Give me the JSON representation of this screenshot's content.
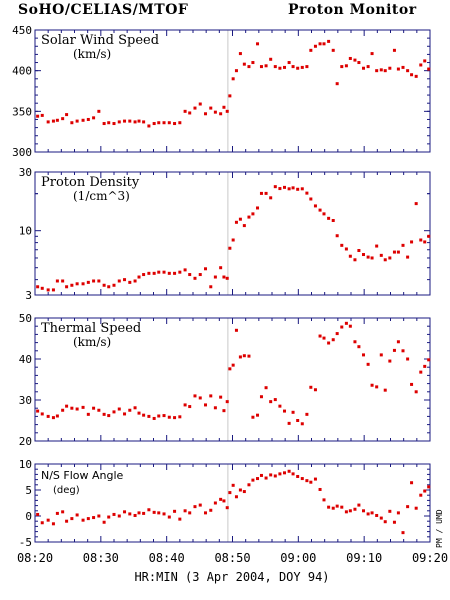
{
  "header": {
    "left_title": "SoHO/CELIAS/MTOF",
    "right_title": "Proton Monitor"
  },
  "footer": {
    "xlabel": "HR:MIN (3 Apr 2004, DOY 94)",
    "side_label": "PM / UMD"
  },
  "colors": {
    "points": "#dd0000",
    "axes": "#1a1a80",
    "text": "#000000",
    "marker_line": "#c8c8c8"
  },
  "chart_data": [
    {
      "type": "scatter",
      "title": "Solar Wind Speed",
      "unit": "(km/s)",
      "yscale": "linear",
      "ylim": [
        300,
        450
      ],
      "yticks": [
        300,
        350,
        400,
        450
      ],
      "x": [
        20.4,
        21.1,
        22.0,
        22.8,
        23.4,
        24.2,
        24.8,
        25.6,
        26.4,
        27.3,
        28.1,
        28.9,
        29.7,
        30.5,
        31.2,
        32.0,
        32.8,
        33.6,
        34.4,
        35.2,
        35.8,
        36.5,
        37.3,
        38.1,
        38.8,
        39.6,
        40.4,
        41.2,
        42.0,
        42.8,
        43.5,
        44.3,
        45.1,
        45.9,
        46.7,
        47.4,
        48.2,
        48.7,
        49.2,
        49.6,
        50.1,
        50.6,
        51.2,
        51.8,
        52.5,
        53.1,
        53.8,
        54.4,
        55.1,
        55.8,
        56.5,
        57.2,
        57.9,
        58.6,
        59.2,
        59.9,
        60.6,
        61.3,
        61.9,
        62.6,
        63.3,
        63.9,
        64.6,
        65.3,
        65.9,
        66.6,
        67.3,
        67.9,
        68.6,
        69.2,
        69.9,
        70.6,
        71.2,
        71.9,
        72.6,
        73.2,
        73.9,
        74.6,
        75.2,
        75.9,
        76.6,
        77.2,
        77.9,
        78.6,
        79.2,
        79.8
      ],
      "y": [
        344,
        345,
        337,
        338,
        339,
        341,
        346,
        336,
        338,
        339,
        340,
        342,
        350,
        335,
        336,
        335,
        337,
        338,
        338,
        337,
        338,
        337,
        332,
        335,
        336,
        336,
        336,
        335,
        336,
        350,
        348,
        354,
        359,
        347,
        354,
        349,
        347,
        355,
        350,
        369,
        390,
        400,
        421,
        408,
        405,
        410,
        433,
        405,
        406,
        414,
        405,
        403,
        404,
        410,
        405,
        403,
        404,
        405,
        425,
        430,
        433,
        433,
        436,
        425,
        384,
        405,
        406,
        415,
        413,
        410,
        403,
        405,
        421,
        400,
        401,
        400,
        403,
        425,
        402,
        404,
        400,
        395,
        393,
        407,
        412,
        402
      ]
    },
    {
      "type": "scatter",
      "title": "Proton Density",
      "unit": "(1/cm^3)",
      "yscale": "log",
      "ylim": [
        3,
        30
      ],
      "yticks": [
        3,
        10,
        30
      ],
      "x": [
        20.4,
        21.1,
        22.0,
        22.8,
        23.4,
        24.2,
        24.8,
        25.6,
        26.4,
        27.3,
        28.1,
        28.9,
        29.7,
        30.5,
        31.2,
        32.0,
        32.8,
        33.6,
        34.4,
        35.2,
        35.8,
        36.5,
        37.3,
        38.1,
        38.8,
        39.6,
        40.4,
        41.2,
        42.0,
        42.8,
        43.5,
        44.3,
        45.1,
        45.9,
        46.7,
        47.4,
        48.2,
        48.7,
        49.2,
        49.6,
        50.1,
        50.6,
        51.2,
        51.8,
        52.5,
        53.1,
        53.8,
        54.4,
        55.1,
        55.8,
        56.5,
        57.2,
        57.9,
        58.6,
        59.2,
        59.9,
        60.6,
        61.3,
        61.9,
        62.6,
        63.3,
        63.9,
        64.6,
        65.3,
        65.9,
        66.6,
        67.3,
        67.9,
        68.6,
        69.2,
        69.9,
        70.6,
        71.2,
        71.9,
        72.6,
        73.2,
        73.9,
        74.6,
        75.2,
        75.9,
        76.6,
        77.2,
        77.9,
        78.6,
        79.2,
        79.8
      ],
      "y": [
        3.5,
        3.4,
        3.3,
        3.3,
        3.9,
        3.9,
        3.5,
        3.6,
        3.7,
        3.7,
        3.8,
        3.9,
        3.9,
        3.6,
        3.5,
        3.6,
        3.9,
        4.0,
        3.8,
        3.9,
        4.2,
        4.4,
        4.5,
        4.5,
        4.6,
        4.6,
        4.5,
        4.5,
        4.6,
        4.8,
        4.4,
        4.1,
        4.4,
        4.9,
        3.5,
        4.2,
        5.0,
        4.2,
        4.1,
        7.2,
        8.4,
        11.7,
        12.4,
        11.0,
        12.9,
        13.7,
        15.3,
        20.1,
        20.1,
        18.5,
        22.8,
        22.0,
        22.5,
        21.9,
        22.3,
        21.7,
        21.9,
        20.2,
        18.1,
        15.9,
        14.7,
        13.7,
        12.6,
        12.1,
        9.1,
        7.6,
        7.1,
        6.2,
        5.8,
        6.9,
        6.4,
        6.1,
        6.0,
        7.5,
        6.3,
        5.8,
        6.0,
        6.7,
        6.7,
        7.6,
        6.1,
        8.1,
        16.6,
        8.4,
        8.1,
        9.0
      ]
    },
    {
      "type": "scatter",
      "title": "Thermal Speed",
      "unit": "(km/s)",
      "yscale": "linear",
      "ylim": [
        20,
        50
      ],
      "yticks": [
        20,
        30,
        40,
        50
      ],
      "x": [
        20.4,
        21.1,
        22.0,
        22.8,
        23.4,
        24.2,
        24.8,
        25.6,
        26.4,
        27.3,
        28.1,
        28.9,
        29.7,
        30.5,
        31.2,
        32.0,
        32.8,
        33.6,
        34.4,
        35.2,
        35.8,
        36.5,
        37.3,
        38.1,
        38.8,
        39.6,
        40.4,
        41.2,
        42.0,
        42.8,
        43.5,
        44.3,
        45.1,
        45.9,
        46.7,
        47.4,
        48.2,
        48.7,
        49.2,
        49.6,
        50.1,
        50.6,
        51.2,
        51.8,
        52.5,
        53.1,
        53.8,
        54.4,
        55.1,
        55.8,
        56.5,
        57.2,
        57.9,
        58.6,
        59.2,
        59.9,
        60.6,
        61.3,
        61.9,
        62.6,
        63.3,
        63.9,
        64.6,
        65.3,
        65.9,
        66.6,
        67.3,
        67.9,
        68.6,
        69.2,
        69.9,
        70.6,
        71.2,
        71.9,
        72.6,
        73.2,
        73.9,
        74.6,
        75.2,
        75.9,
        76.6,
        77.2,
        77.9,
        78.6,
        79.2,
        79.8
      ],
      "y": [
        27.3,
        26.6,
        26.0,
        25.7,
        26.1,
        27.5,
        28.5,
        28.0,
        27.8,
        28.2,
        26.5,
        28.0,
        27.5,
        26.5,
        26.2,
        27.1,
        27.8,
        26.6,
        27.5,
        28.1,
        26.8,
        26.3,
        26.0,
        25.5,
        26.1,
        26.2,
        25.8,
        25.7,
        25.9,
        28.8,
        28.4,
        31.0,
        30.5,
        28.8,
        31.0,
        28.1,
        30.7,
        27.4,
        29.6,
        37.6,
        38.5,
        47.0,
        40.5,
        40.8,
        40.7,
        25.8,
        26.3,
        30.8,
        33.0,
        29.6,
        30.1,
        28.5,
        27.3,
        24.3,
        27.0,
        25.0,
        24.2,
        26.5,
        33.1,
        32.5,
        45.6,
        45.1,
        43.9,
        44.7,
        46.2,
        47.8,
        48.7,
        48.0,
        44.2,
        43.0,
        41.0,
        38.7,
        33.6,
        33.2,
        41.0,
        32.4,
        39.5,
        42.1,
        44.2,
        42.0,
        40.0,
        33.8,
        32.0,
        36.8,
        38.2,
        39.8
      ]
    },
    {
      "type": "scatter",
      "title": "N/S Flow Angle",
      "unit": "(deg)",
      "yscale": "linear",
      "ylim": [
        -5,
        10
      ],
      "yticks": [
        -5,
        0,
        5,
        10
      ],
      "x": [
        20.4,
        21.1,
        22.0,
        22.8,
        23.4,
        24.2,
        24.8,
        25.6,
        26.4,
        27.3,
        28.1,
        28.9,
        29.7,
        30.5,
        31.2,
        32.0,
        32.8,
        33.6,
        34.4,
        35.2,
        35.8,
        36.5,
        37.3,
        38.1,
        38.8,
        39.6,
        40.4,
        41.2,
        42.0,
        42.8,
        43.5,
        44.3,
        45.1,
        45.9,
        46.7,
        47.4,
        48.2,
        48.7,
        49.2,
        49.6,
        50.1,
        50.6,
        51.2,
        51.8,
        52.5,
        53.1,
        53.8,
        54.4,
        55.1,
        55.8,
        56.5,
        57.2,
        57.9,
        58.6,
        59.2,
        59.9,
        60.6,
        61.3,
        61.9,
        62.6,
        63.3,
        63.9,
        64.6,
        65.3,
        65.9,
        66.6,
        67.3,
        67.9,
        68.6,
        69.2,
        69.9,
        70.6,
        71.2,
        71.9,
        72.6,
        73.2,
        73.9,
        74.6,
        75.2,
        75.9,
        76.6,
        77.2,
        77.9,
        78.6,
        79.2,
        79.8
      ],
      "y": [
        0.3,
        -1.3,
        -0.8,
        -1.5,
        0.5,
        0.8,
        -1.0,
        -0.5,
        0.2,
        -0.8,
        -0.5,
        -0.3,
        0.0,
        -1.2,
        -0.2,
        0.3,
        0.0,
        0.8,
        0.4,
        0.1,
        0.6,
        0.5,
        1.2,
        0.7,
        0.6,
        0.4,
        -0.2,
        0.9,
        -0.6,
        1.0,
        0.6,
        1.8,
        2.1,
        0.6,
        1.1,
        2.5,
        3.2,
        2.9,
        1.6,
        4.5,
        5.9,
        3.7,
        5.0,
        4.7,
        6.0,
        6.9,
        7.2,
        7.8,
        7.3,
        7.9,
        7.7,
        8.1,
        8.3,
        8.6,
        8.1,
        7.6,
        7.2,
        6.8,
        6.5,
        7.1,
        5.1,
        3.1,
        1.7,
        1.5,
        1.9,
        1.7,
        0.8,
        1.0,
        1.3,
        2.1,
        1.0,
        0.4,
        0.6,
        0.1,
        -0.4,
        -1.1,
        0.9,
        -1.2,
        0.6,
        -3.2,
        1.8,
        6.4,
        1.5,
        4.0,
        4.8,
        5.6
      ]
    }
  ],
  "x_axis": {
    "min": 20,
    "max": 80,
    "ticks": [
      20,
      30,
      40,
      50,
      60,
      70,
      80
    ],
    "ticklabels": [
      "08:20",
      "08:30",
      "08:40",
      "08:50",
      "09:00",
      "09:10",
      "09:20"
    ],
    "marker_x": 49.3
  }
}
